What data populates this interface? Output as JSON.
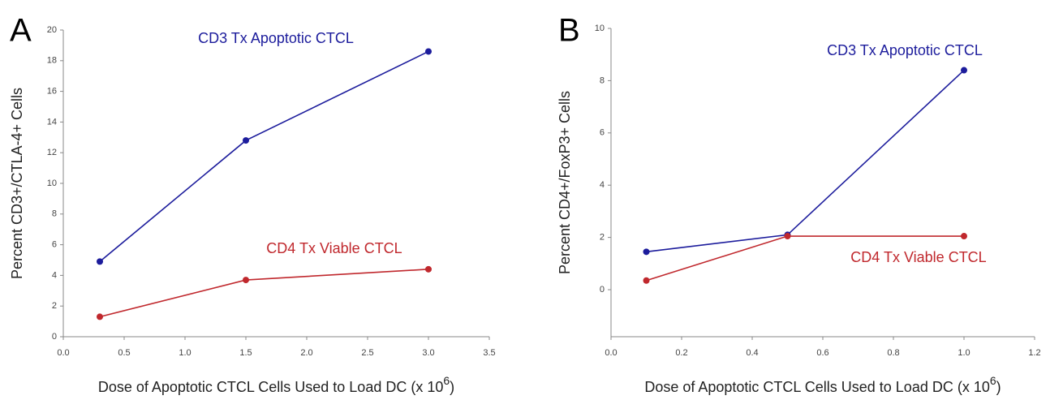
{
  "chart_data": [
    {
      "type": "line",
      "panel_label": "A",
      "x_label": "Dose of Apoptotic CTCL Cells Used to Load DC (x 10",
      "x_label_exponent": "6",
      "x_label_end": ")",
      "y_label": "Percent CD3+/CTLA-4+ Cells",
      "x": [
        0.3,
        1.5,
        3.0
      ],
      "series": [
        {
          "name": "CD3 Tx Apoptotic CTCL",
          "color": "#1c1c9c",
          "values": [
            4.9,
            12.8,
            18.6
          ]
        },
        {
          "name": "CD4 Tx Viable CTCL",
          "color": "#c0282d",
          "values": [
            1.3,
            3.7,
            4.4
          ]
        }
      ],
      "xlim": [
        0,
        3.5
      ],
      "xticks": [
        {
          "value": 0,
          "label": "0.0"
        },
        0.5,
        {
          "value": 1,
          "label": "1.0"
        },
        1.5,
        {
          "value": 2,
          "label": "2.0"
        },
        2.5,
        {
          "value": 3,
          "label": "3.0"
        },
        3.5
      ],
      "ylim": [
        0,
        20
      ],
      "yticks": [
        0,
        2,
        4,
        6,
        8,
        10,
        12,
        14,
        16,
        18,
        20
      ]
    },
    {
      "type": "line",
      "panel_label": "B",
      "x_label": "Dose of Apoptotic CTCL Cells Used to Load DC (x 10",
      "x_label_exponent": "6",
      "x_label_end": ")",
      "y_label": "Percent CD4+/FoxP3+ Cells",
      "x": [
        0.1,
        0.5,
        1.0
      ],
      "series": [
        {
          "name": "CD3 Tx Apoptotic CTCL",
          "color": "#1c1c9c",
          "values": [
            1.45,
            2.1,
            8.4
          ]
        },
        {
          "name": "CD4 Tx Viable CTCL",
          "color": "#c0282d",
          "values": [
            0.35,
            2.05,
            2.05
          ]
        }
      ],
      "xlim": [
        0,
        1.2
      ],
      "xticks": [
        {
          "value": 0,
          "label": "0.0"
        },
        0.2,
        0.4,
        0.6,
        0.8,
        {
          "value": 1,
          "label": "1.0"
        },
        1.2
      ],
      "ylim": [
        -1.8,
        10
      ],
      "yticks": [
        0,
        2,
        4,
        6,
        8,
        10
      ]
    }
  ]
}
